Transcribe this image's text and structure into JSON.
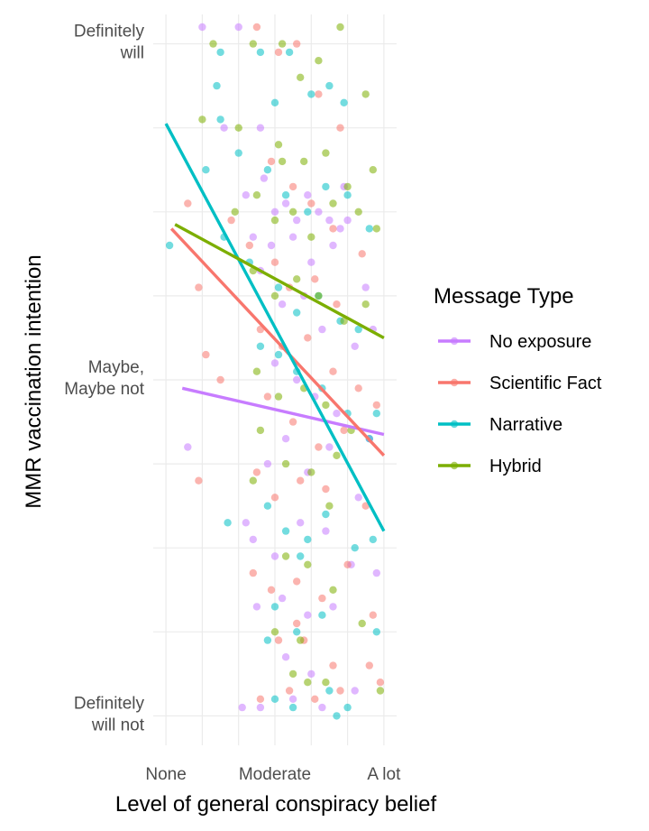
{
  "chart_data": {
    "type": "scatter",
    "xlabel": "Level of general conspiracy belief",
    "ylabel": "MMR vaccination intention",
    "x_ticks": [
      {
        "value": 0,
        "label": "None"
      },
      {
        "value": 3,
        "label": "Moderate"
      },
      {
        "value": 6,
        "label": "A lot"
      }
    ],
    "y_ticks": [
      {
        "value": 0,
        "label": "Definitely|will not"
      },
      {
        "value": 4,
        "label": "Maybe,|Maybe not"
      },
      {
        "value": 8,
        "label": "Definitely|will"
      }
    ],
    "xlim": [
      -0.35,
      6.35
    ],
    "ylim": [
      -0.35,
      8.35
    ],
    "grid": true,
    "legend": {
      "title": "Message Type",
      "position": "right"
    },
    "series": [
      {
        "name": "No exposure",
        "color": "#C77CFF",
        "trend": [
          [
            0.45,
            3.9
          ],
          [
            6,
            3.35
          ]
        ],
        "points": [
          [
            0.6,
            3.2
          ],
          [
            1.0,
            8.2
          ],
          [
            1.6,
            7.0
          ],
          [
            2.0,
            8.2
          ],
          [
            2.6,
            7.0
          ],
          [
            2.2,
            6.2
          ],
          [
            2.7,
            6.4
          ],
          [
            3.0,
            6.0
          ],
          [
            3.3,
            6.1
          ],
          [
            3.6,
            5.9
          ],
          [
            3.9,
            6.2
          ],
          [
            4.2,
            6.0
          ],
          [
            4.5,
            5.9
          ],
          [
            4.8,
            5.8
          ],
          [
            2.4,
            5.7
          ],
          [
            2.9,
            5.6
          ],
          [
            3.5,
            5.7
          ],
          [
            4.0,
            5.4
          ],
          [
            4.6,
            5.6
          ],
          [
            5.0,
            5.9
          ],
          [
            5.5,
            5.1
          ],
          [
            2.6,
            5.3
          ],
          [
            3.2,
            4.9
          ],
          [
            3.8,
            5.0
          ],
          [
            4.3,
            4.6
          ],
          [
            5.2,
            4.4
          ],
          [
            5.7,
            4.6
          ],
          [
            3.0,
            4.2
          ],
          [
            3.6,
            4.0
          ],
          [
            4.1,
            3.8
          ],
          [
            4.7,
            3.6
          ],
          [
            5.6,
            3.3
          ],
          [
            2.8,
            3.0
          ],
          [
            3.3,
            3.3
          ],
          [
            3.9,
            2.9
          ],
          [
            4.5,
            3.2
          ],
          [
            5.3,
            2.6
          ],
          [
            2.4,
            2.1
          ],
          [
            3.0,
            1.9
          ],
          [
            3.7,
            2.3
          ],
          [
            4.4,
            2.2
          ],
          [
            5.1,
            1.8
          ],
          [
            5.8,
            1.7
          ],
          [
            2.5,
            1.3
          ],
          [
            3.2,
            1.4
          ],
          [
            3.9,
            1.2
          ],
          [
            4.6,
            1.3
          ],
          [
            3.3,
            0.7
          ],
          [
            4.0,
            0.5
          ],
          [
            2.1,
            0.1
          ],
          [
            2.6,
            0.1
          ],
          [
            3.5,
            0.2
          ],
          [
            4.3,
            0.1
          ],
          [
            5.2,
            0.3
          ],
          [
            4.9,
            6.3
          ],
          [
            2.2,
            2.3
          ]
        ]
      },
      {
        "name": "Scientific Fact",
        "color": "#F8766D",
        "trend": [
          [
            0.15,
            5.8
          ],
          [
            6,
            3.1
          ]
        ],
        "points": [
          [
            0.6,
            6.1
          ],
          [
            1.1,
            4.3
          ],
          [
            1.5,
            4.0
          ],
          [
            2.5,
            8.2
          ],
          [
            3.1,
            7.9
          ],
          [
            3.6,
            8.0
          ],
          [
            4.2,
            7.4
          ],
          [
            4.8,
            7.0
          ],
          [
            2.9,
            6.6
          ],
          [
            3.5,
            6.3
          ],
          [
            4.0,
            6.1
          ],
          [
            4.6,
            5.8
          ],
          [
            1.8,
            5.9
          ],
          [
            2.3,
            5.6
          ],
          [
            3.0,
            5.4
          ],
          [
            3.4,
            5.1
          ],
          [
            4.1,
            5.2
          ],
          [
            4.7,
            4.9
          ],
          [
            5.4,
            5.5
          ],
          [
            0.9,
            5.1
          ],
          [
            2.6,
            4.6
          ],
          [
            3.2,
            4.4
          ],
          [
            3.9,
            4.5
          ],
          [
            4.6,
            4.1
          ],
          [
            5.3,
            3.9
          ],
          [
            5.8,
            3.7
          ],
          [
            2.8,
            3.8
          ],
          [
            3.5,
            3.5
          ],
          [
            4.2,
            3.2
          ],
          [
            4.9,
            3.4
          ],
          [
            0.9,
            2.8
          ],
          [
            2.5,
            2.9
          ],
          [
            3.0,
            2.6
          ],
          [
            3.7,
            2.8
          ],
          [
            4.4,
            2.7
          ],
          [
            5.5,
            2.5
          ],
          [
            2.4,
            1.7
          ],
          [
            2.9,
            1.5
          ],
          [
            3.6,
            1.6
          ],
          [
            4.3,
            1.4
          ],
          [
            5.0,
            1.8
          ],
          [
            5.7,
            1.2
          ],
          [
            3.1,
            0.9
          ],
          [
            3.8,
            0.9
          ],
          [
            4.6,
            0.6
          ],
          [
            3.4,
            0.3
          ],
          [
            4.1,
            0.2
          ],
          [
            4.8,
            0.3
          ],
          [
            5.6,
            0.6
          ],
          [
            5.9,
            0.4
          ],
          [
            3.6,
            1.1
          ],
          [
            2.6,
            0.2
          ]
        ]
      },
      {
        "name": "Narrative",
        "color": "#00BFC4",
        "trend": [
          [
            0.0,
            7.05
          ],
          [
            6,
            2.2
          ]
        ],
        "points": [
          [
            0.1,
            5.6
          ],
          [
            1.1,
            6.5
          ],
          [
            1.4,
            7.5
          ],
          [
            1.5,
            7.9
          ],
          [
            2.6,
            7.9
          ],
          [
            3.4,
            7.9
          ],
          [
            4.0,
            7.4
          ],
          [
            4.9,
            7.3
          ],
          [
            3.0,
            7.3
          ],
          [
            2.8,
            6.5
          ],
          [
            3.3,
            6.2
          ],
          [
            3.9,
            6.0
          ],
          [
            4.4,
            6.3
          ],
          [
            5.0,
            6.2
          ],
          [
            5.6,
            5.8
          ],
          [
            1.6,
            5.7
          ],
          [
            2.3,
            5.4
          ],
          [
            3.1,
            5.1
          ],
          [
            3.6,
            4.8
          ],
          [
            4.2,
            5.0
          ],
          [
            4.8,
            4.7
          ],
          [
            5.3,
            4.6
          ],
          [
            2.6,
            4.4
          ],
          [
            3.1,
            4.3
          ],
          [
            3.6,
            4.1
          ],
          [
            4.3,
            3.9
          ],
          [
            5.0,
            3.6
          ],
          [
            5.6,
            3.3
          ],
          [
            5.8,
            3.6
          ],
          [
            1.7,
            2.3
          ],
          [
            2.8,
            2.5
          ],
          [
            3.3,
            2.2
          ],
          [
            3.9,
            2.1
          ],
          [
            4.4,
            2.4
          ],
          [
            5.2,
            2.0
          ],
          [
            5.7,
            2.1
          ],
          [
            3.0,
            1.3
          ],
          [
            3.6,
            1.0
          ],
          [
            4.3,
            1.2
          ],
          [
            2.8,
            0.9
          ],
          [
            5.8,
            1.0
          ],
          [
            3.5,
            0.1
          ],
          [
            4.5,
            0.3
          ],
          [
            5.0,
            0.1
          ],
          [
            4.7,
            0.0
          ],
          [
            3.0,
            0.2
          ],
          [
            3.7,
            1.9
          ],
          [
            1.5,
            7.1
          ],
          [
            2.0,
            6.7
          ],
          [
            4.5,
            7.5
          ]
        ]
      },
      {
        "name": "Hybrid",
        "color": "#7CAE00",
        "trend": [
          [
            0.25,
            5.85
          ],
          [
            6,
            4.5
          ]
        ],
        "points": [
          [
            1.0,
            7.1
          ],
          [
            1.3,
            8.0
          ],
          [
            2.0,
            7.0
          ],
          [
            2.4,
            8.0
          ],
          [
            3.2,
            8.0
          ],
          [
            3.7,
            7.6
          ],
          [
            4.2,
            7.8
          ],
          [
            4.8,
            8.2
          ],
          [
            5.5,
            7.4
          ],
          [
            3.1,
            6.8
          ],
          [
            3.8,
            6.6
          ],
          [
            4.4,
            6.7
          ],
          [
            5.0,
            6.3
          ],
          [
            5.7,
            6.5
          ],
          [
            1.9,
            6.0
          ],
          [
            2.5,
            6.2
          ],
          [
            3.0,
            5.9
          ],
          [
            3.5,
            6.0
          ],
          [
            4.0,
            5.7
          ],
          [
            4.6,
            6.1
          ],
          [
            5.3,
            6.0
          ],
          [
            5.8,
            5.8
          ],
          [
            2.4,
            5.3
          ],
          [
            3.0,
            5.0
          ],
          [
            3.6,
            5.2
          ],
          [
            4.2,
            5.0
          ],
          [
            4.9,
            4.7
          ],
          [
            5.5,
            4.9
          ],
          [
            2.5,
            4.1
          ],
          [
            3.1,
            3.8
          ],
          [
            3.8,
            3.9
          ],
          [
            4.4,
            3.7
          ],
          [
            5.1,
            3.4
          ],
          [
            2.6,
            3.4
          ],
          [
            3.3,
            3.0
          ],
          [
            4.0,
            2.9
          ],
          [
            4.7,
            3.1
          ],
          [
            3.3,
            1.9
          ],
          [
            3.9,
            1.8
          ],
          [
            4.6,
            1.5
          ],
          [
            5.4,
            1.1
          ],
          [
            3.0,
            1.0
          ],
          [
            3.7,
            0.9
          ],
          [
            4.4,
            0.4
          ],
          [
            3.5,
            0.5
          ],
          [
            3.9,
            0.4
          ],
          [
            5.9,
            0.3
          ],
          [
            2.4,
            2.8
          ],
          [
            3.2,
            6.6
          ],
          [
            4.5,
            2.5
          ]
        ]
      }
    ]
  }
}
